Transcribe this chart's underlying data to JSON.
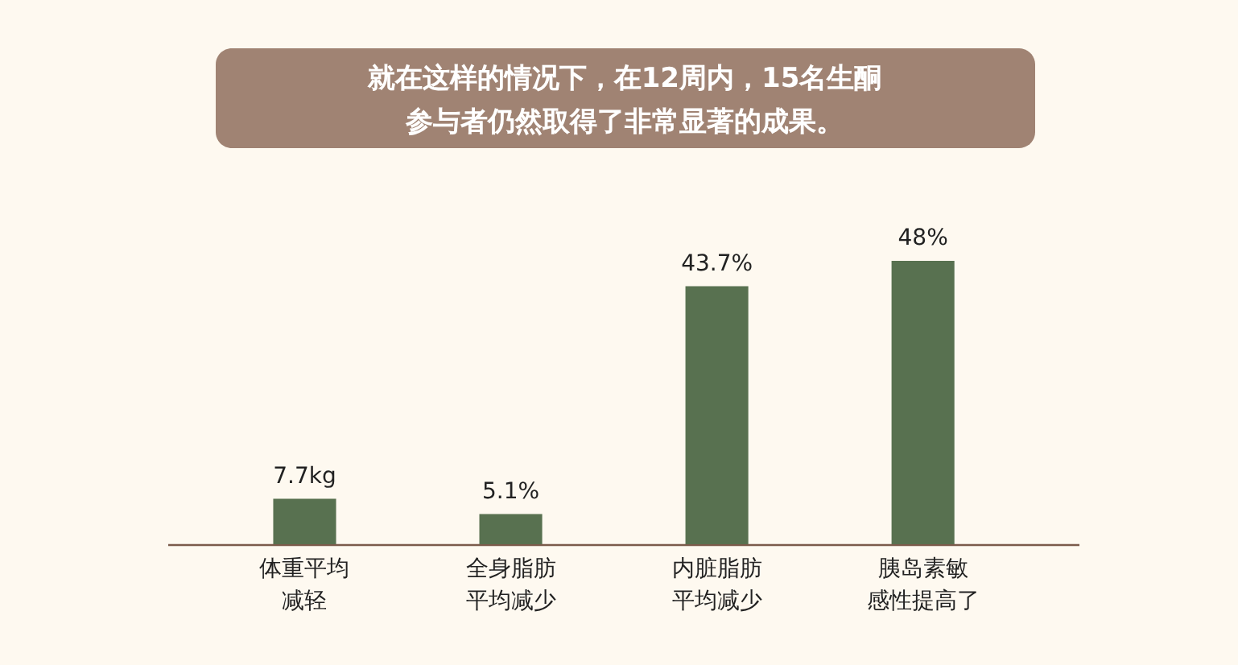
{
  "chart_data": {
    "type": "bar",
    "title": "就在这样的情况下，在12周内，15名生酮参与者仍然取得了非常显著的成果。",
    "categories": [
      "体重平均减轻",
      "全身脂肪平均减少",
      "内脏脂肪平均减少",
      "胰岛素敏感性提高了"
    ],
    "values": [
      7.7,
      5.1,
      43.7,
      48
    ],
    "value_labels": [
      "7.7kg",
      "5.1%",
      "43.7%",
      "48%"
    ],
    "color": "#587150"
  }
}
